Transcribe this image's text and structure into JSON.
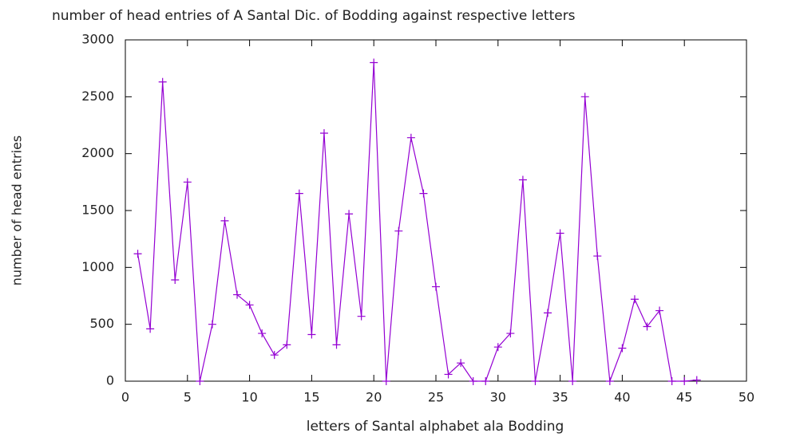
{
  "chart_data": {
    "type": "line",
    "title": "number of head entries of A Santal Dic. of Bodding against respective letters",
    "x_label": "letters of Santal alphabet ala Bodding",
    "y_label": "number of head entries",
    "xlim": [
      0,
      50
    ],
    "xticks": [
      0,
      5,
      10,
      15,
      20,
      25,
      30,
      35,
      40,
      45,
      50
    ],
    "ylim": [
      0,
      3000
    ],
    "yticks": [
      0,
      500,
      1000,
      1500,
      2000,
      2500,
      3000
    ],
    "x": [
      1,
      2,
      3,
      4,
      5,
      6,
      7,
      8,
      9,
      10,
      11,
      12,
      13,
      14,
      15,
      16,
      17,
      18,
      19,
      20,
      21,
      22,
      23,
      24,
      25,
      26,
      27,
      28,
      29,
      30,
      31,
      32,
      33,
      34,
      35,
      36,
      37,
      38,
      39,
      40,
      41,
      42,
      43,
      44,
      45,
      46
    ],
    "series": [
      {
        "color": "#9400d3",
        "values": [
          1120,
          460,
          2630,
          890,
          1750,
          0,
          500,
          1410,
          760,
          670,
          420,
          230,
          320,
          1650,
          410,
          2180,
          320,
          1470,
          570,
          2800,
          0,
          1320,
          2140,
          1650,
          830,
          60,
          160,
          0,
          0,
          300,
          420,
          1770,
          0,
          600,
          1300,
          0,
          2500,
          1100,
          0,
          290,
          720,
          480,
          620,
          0,
          0,
          10
        ]
      }
    ]
  }
}
